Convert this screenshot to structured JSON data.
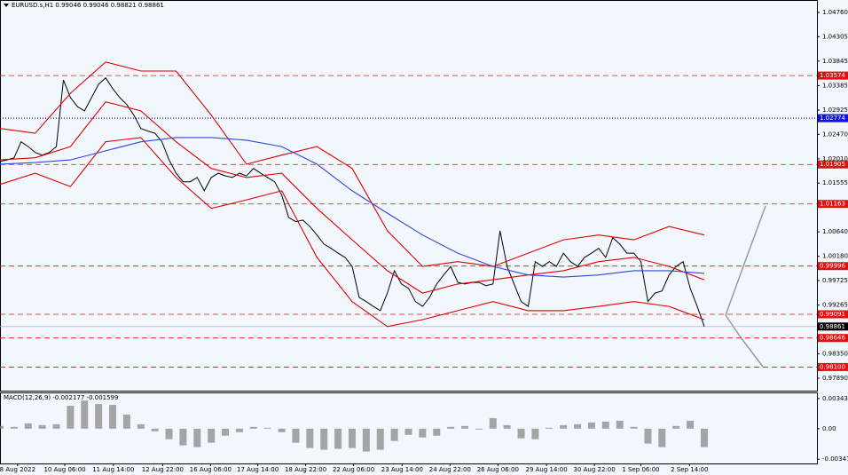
{
  "chart_data": {
    "type": "line",
    "title": "EURUSD.s,H1  0.99046 0.99046 0.98821 0.98861",
    "xlim": [
      0,
      116
    ],
    "xticks": [
      {
        "value": 2.5,
        "label": "8 Aug 2022"
      },
      {
        "value": 9.2,
        "label": "10 Aug 06:00"
      },
      {
        "value": 16.1,
        "label": "11 Aug 14:00"
      },
      {
        "value": 23.1,
        "label": "12 Aug 22:00"
      },
      {
        "value": 29.9,
        "label": "16 Aug 06:00"
      },
      {
        "value": 36.6,
        "label": "17 Aug 14:00"
      },
      {
        "value": 43.4,
        "label": "18 Aug 22:00"
      },
      {
        "value": 50.2,
        "label": "22 Aug 06:00"
      },
      {
        "value": 57.1,
        "label": "23 Aug 14:00"
      },
      {
        "value": 63.9,
        "label": "24 Aug 22:00"
      },
      {
        "value": 70.7,
        "label": "26 Aug 06:00"
      },
      {
        "value": 77.6,
        "label": "29 Aug 14:00"
      },
      {
        "value": 84.4,
        "label": "30 Aug 22:00"
      },
      {
        "value": 91,
        "label": "1 Sep 06:00"
      },
      {
        "value": 97.9,
        "label": "2 Sep 14:00"
      }
    ],
    "ylim": [
      0.97657,
      1.04993
    ],
    "yticks": [
      {
        "value": 1.0476,
        "label": "1.04760"
      },
      1.04305,
      1.03845,
      1.03385,
      1.02925,
      {
        "value": 1.0247,
        "label": "1.02470"
      },
      {
        "value": 1.0201,
        "label": "1.02010"
      },
      1.01555,
      {
        "value": 1.0064,
        "label": "1.00640"
      },
      {
        "value": 1.0018,
        "label": "1.00180"
      },
      0.99725,
      0.99265,
      {
        "value": 0.9835,
        "label": "0.98350"
      },
      {
        "value": 0.9789,
        "label": "0.97890"
      }
    ],
    "series": [
      {
        "color": "#000000",
        "values": [
          1.0196,
          1.0199,
          1.0203,
          1.0233,
          1.0224,
          1.0213,
          1.0208,
          1.0213,
          1.0224,
          1.0349,
          1.0316,
          1.0299,
          1.0291,
          1.0316,
          1.0341,
          1.0353,
          1.0333,
          1.0316,
          1.0303,
          1.0283,
          1.0258,
          1.0253,
          1.0249,
          1.0233,
          1.0199,
          1.0174,
          1.0158,
          1.0158,
          1.0166,
          1.0141,
          1.0166,
          1.0174,
          1.0169,
          1.0166,
          1.0174,
          1.0169,
          1.0183,
          1.0174,
          1.0166,
          1.0158,
          1.0133,
          1.0091,
          1.0083,
          1.0086,
          1.0074,
          1.0058,
          1.0041,
          1.0033,
          1.0024,
          1.0016,
          0.9999,
          0.9941,
          0.9933,
          0.9924,
          0.9916,
          0.9949,
          0.9991,
          0.9966,
          0.9958,
          0.9933,
          0.9924,
          0.9941,
          0.9966,
          0.9983,
          0.9999,
          0.9969,
          0.9966,
          0.9969,
          0.9969,
          0.9963,
          0.9966,
          1.0066,
          0.9999,
          0.9966,
          0.9933,
          0.9924,
          1.0008,
          0.9999,
          1.0008,
          0.9999,
          1.0024,
          1.0008,
          0.9999,
          1.0016,
          1.0024,
          1.0033,
          1.0016,
          1.0053,
          1.0041,
          1.0024,
          1.0024,
          1.0008,
          0.9933,
          0.9949,
          0.9953,
          0.9983,
          0.9999,
          1.0008,
          0.9958,
          0.9924,
          0.9886
        ]
      },
      {
        "color": "#e00000",
        "x": [
          0,
          5,
          10,
          15,
          20,
          25,
          30,
          35,
          40,
          45,
          50,
          55,
          60,
          65,
          70,
          75,
          80,
          85,
          90,
          95,
          100
        ],
        "values": [
          1.0258,
          1.0249,
          1.0324,
          1.0383,
          1.0366,
          1.0366,
          1.0283,
          1.0191,
          1.0208,
          1.0224,
          1.0183,
          1.0066,
          0.9999,
          1.0008,
          0.9999,
          1.0024,
          1.0049,
          1.0058,
          1.0049,
          1.0074,
          1.0058
        ]
      },
      {
        "color": "#e00000",
        "x": [
          0,
          5,
          10,
          15,
          20,
          25,
          30,
          35,
          40,
          45,
          50,
          55,
          60,
          65,
          70,
          75,
          80,
          85,
          90,
          95,
          100
        ],
        "values": [
          1.0199,
          1.0203,
          1.0224,
          1.0308,
          1.0291,
          1.0233,
          1.0183,
          1.0166,
          1.0174,
          1.0108,
          1.0049,
          0.9991,
          0.9949,
          0.9966,
          0.9974,
          0.9983,
          0.9991,
          1.0008,
          1.0016,
          0.9999,
          0.9974
        ]
      },
      {
        "color": "#e00000",
        "x": [
          0,
          5,
          10,
          15,
          20,
          25,
          30,
          35,
          40,
          45,
          50,
          55,
          60,
          65,
          70,
          75,
          80,
          85,
          90,
          95,
          100
        ],
        "values": [
          1.0153,
          1.0174,
          1.0149,
          1.0233,
          1.0241,
          1.0166,
          1.0108,
          1.0124,
          1.0141,
          1.0016,
          0.9933,
          0.9886,
          0.9899,
          0.9916,
          0.9933,
          0.9916,
          0.9916,
          0.9924,
          0.9933,
          0.9924,
          0.9899
        ]
      },
      {
        "color": "#3344dd",
        "x": [
          0,
          5,
          10,
          15,
          20,
          25,
          30,
          35,
          40,
          45,
          50,
          55,
          60,
          65,
          70,
          75,
          80,
          85,
          90,
          95,
          100
        ],
        "values": [
          1.0191,
          1.0194,
          1.0199,
          1.0216,
          1.0233,
          1.0241,
          1.0241,
          1.0236,
          1.0224,
          1.0191,
          1.0141,
          1.0099,
          1.0058,
          1.0024,
          0.9999,
          0.9983,
          0.9979,
          0.9983,
          0.9991,
          0.9991,
          0.9986
        ]
      }
    ],
    "levels": {
      "values": [
        1.03574,
        1.02774,
        1.01905,
        1.01163,
        0.99996,
        0.99091,
        0.98861,
        0.98646,
        0.981
      ],
      "value_labels": [
        "1.03574",
        "1.02774",
        "1.01905",
        "1.01163",
        "0.99996",
        "0.99091",
        "0.98861",
        "0.98646",
        "0.98100"
      ],
      "colors": [
        "#e01010",
        "#1010e0",
        "#e01010",
        "#e01010",
        "#e01010",
        "#e01010",
        "#000000",
        "#e01010",
        "#e01010"
      ]
    },
    "macd": {
      "title": "MACD(12,26,9) -0.002177 -0.001599",
      "color": "#808080",
      "ylim": [
        -0.00396,
        0.00402
      ],
      "yticks": [
        0.003432,
        {
          "value": 0,
          "label": "0.00"
        },
        -0.003478
      ],
      "x": [
        0,
        2,
        4,
        6,
        8,
        10,
        12,
        14,
        16,
        18,
        20,
        22,
        24,
        26,
        28,
        30,
        32,
        34,
        36,
        38,
        40,
        42,
        44,
        46,
        48,
        50,
        52,
        54,
        56,
        58,
        60,
        62,
        64,
        66,
        68,
        70,
        72,
        74,
        76,
        78,
        80,
        82,
        84,
        86,
        88,
        90,
        92,
        94,
        96,
        98,
        100
      ],
      "values": [
        0.0003,
        0.0002,
        0.0006,
        0.0004,
        0.0005,
        0.0026,
        0.0032,
        0.0028,
        0.0027,
        0.0016,
        0.0005,
        -0.0003,
        -0.0012,
        -0.0019,
        -0.0021,
        -0.0016,
        -0.0008,
        -0.0004,
        0.0002,
        0.0001,
        -0.0004,
        -0.0016,
        -0.0022,
        -0.0024,
        -0.0023,
        -0.0022,
        -0.0026,
        -0.0024,
        -0.0014,
        -0.0007,
        -0.001,
        -0.0008,
        0.0002,
        0.0003,
        -0.0001,
        0.0012,
        0.0004,
        -0.0011,
        -0.0012,
        0.0001,
        0.0004,
        0.0005,
        0.0007,
        0.0008,
        0.0009,
        0.0002,
        -0.0017,
        -0.0021,
        0.0003,
        0.0009,
        -0.0021
      ]
    }
  }
}
